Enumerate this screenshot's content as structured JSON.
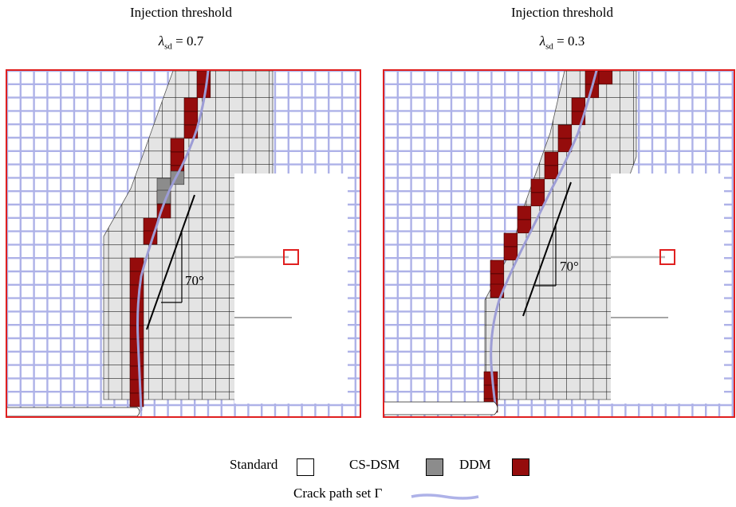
{
  "panels": [
    {
      "title": "Injection threshold",
      "lambda_symbol": "λ",
      "lambda_sub": "sd",
      "lambda_value": "= 0.7",
      "angle_label": "70°"
    },
    {
      "title": "Injection threshold",
      "lambda_symbol": "λ",
      "lambda_sub": "sd",
      "lambda_value": "= 0.3",
      "angle_label": "70°"
    }
  ],
  "legend": {
    "standard": "Standard",
    "csdsm": "CS-DSM",
    "ddm": "DDM",
    "crack_path": "Crack path set Γ"
  },
  "colors": {
    "frame": "#e02020",
    "mesh": "#aeb2e8",
    "standard_cell": "#e4e4e4",
    "csdsm": "#8c8c8c",
    "ddm": "#950c0c",
    "crack": "#9d9dd6"
  }
}
